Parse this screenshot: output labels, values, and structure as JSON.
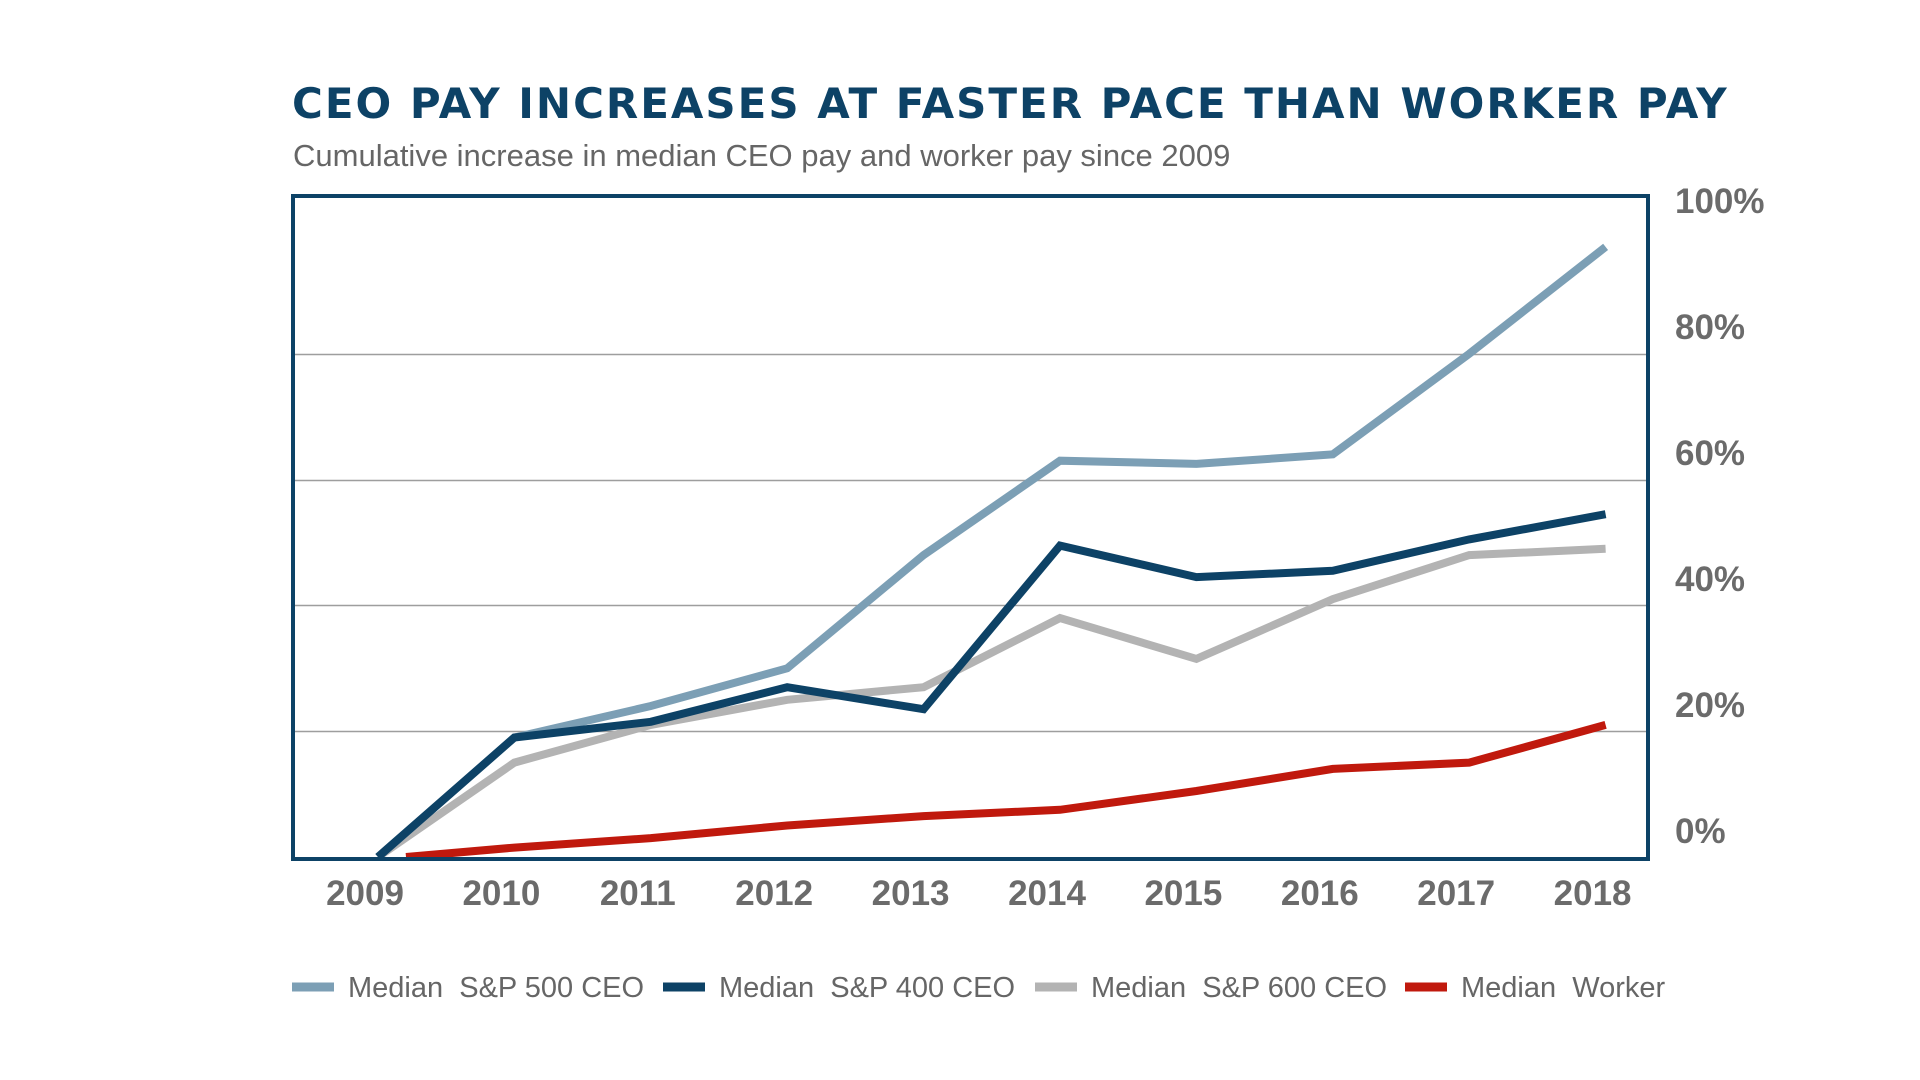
{
  "chart_data": {
    "type": "line",
    "title": "CEO PAY INCREASES AT FASTER PACE THAN WORKER PAY",
    "subtitle": "Cumulative increase in median CEO pay and worker pay since 2009",
    "x": [
      "2009",
      "2010",
      "2011",
      "2012",
      "2013",
      "2014",
      "2015",
      "2016",
      "2017",
      "2018"
    ],
    "y_ticks": [
      "0%",
      "20%",
      "40%",
      "60%",
      "80%",
      "100%"
    ],
    "ylim": [
      0,
      100
    ],
    "y_axis_side": "right",
    "grid": true,
    "legend_position": "bottom",
    "series": [
      {
        "name": "Median  S&P 500 CEO",
        "color": "#7c9fb5",
        "values": [
          0,
          19,
          24,
          30,
          48,
          63,
          62.5,
          64,
          80,
          97
        ]
      },
      {
        "name": "Median  S&P 400 CEO",
        "color": "#0d4266",
        "values": [
          0,
          19,
          21.5,
          27,
          23.5,
          49.5,
          44.5,
          45.5,
          50.5,
          54.5
        ]
      },
      {
        "name": "Median  S&P 600 CEO",
        "color": "#b3b3b3",
        "values": [
          0,
          15,
          21,
          25,
          27,
          38,
          31.5,
          41,
          48,
          49
        ]
      },
      {
        "name": "Median  Worker",
        "color": "#c0190d",
        "values": [
          0,
          1.5,
          3,
          5,
          6.5,
          7.5,
          10.5,
          14,
          15,
          21
        ]
      }
    ],
    "colors": {
      "title": "#0d4266",
      "subtitle": "#666666",
      "frame": "#0d4266",
      "grid": "#9e9e9e",
      "tick": "#6b6b6b",
      "legend_text": "#666666"
    }
  }
}
